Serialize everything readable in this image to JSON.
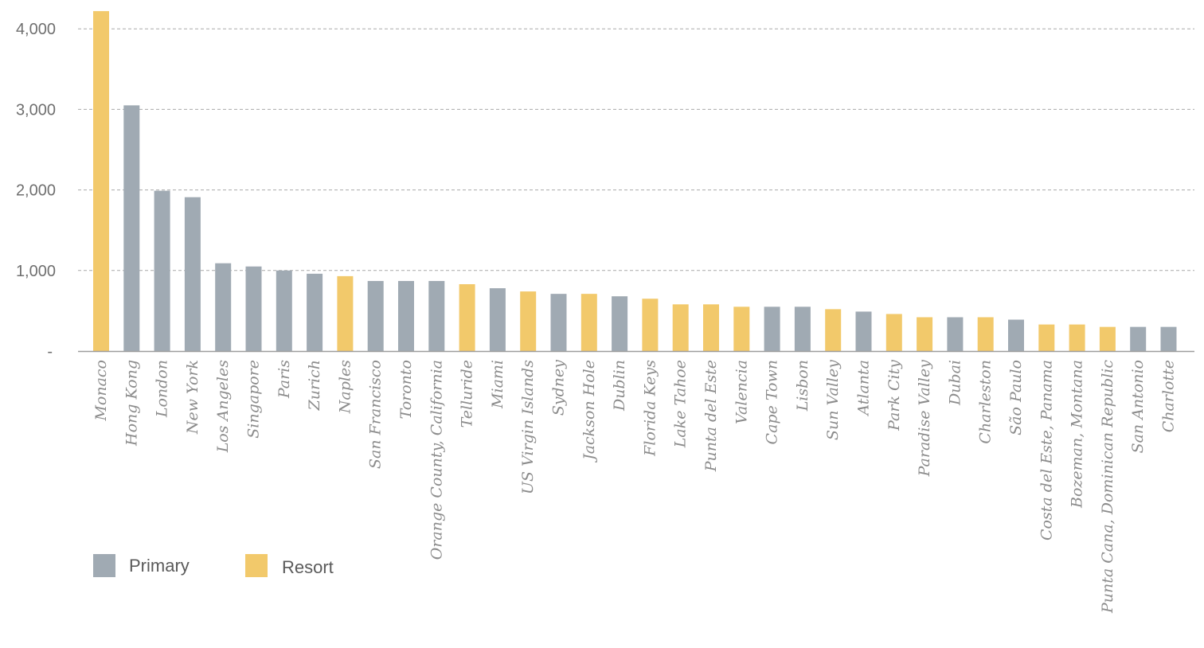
{
  "colors": {
    "Primary": "#a0aab3",
    "Resort": "#f2c96b"
  },
  "chart_data": {
    "type": "bar",
    "title": "",
    "xlabel": "",
    "ylabel": "",
    "ylim": [
      0,
      4200
    ],
    "yticks": [
      {
        "value": 0,
        "label": "-"
      },
      {
        "value": 1000,
        "label": "1,000"
      },
      {
        "value": 2000,
        "label": "2,000"
      },
      {
        "value": 3000,
        "label": "3,000"
      },
      {
        "value": 4000,
        "label": "4,000"
      }
    ],
    "grid": true,
    "legend": {
      "position": "bottom-left",
      "entries": [
        "Primary",
        "Resort"
      ]
    },
    "categories": [
      "Monaco",
      "Hong Kong",
      "London",
      "New York",
      "Los Angeles",
      "Singapore",
      "Paris",
      "Zurich",
      "Naples",
      "San Francisco",
      "Toronto",
      "Orange County, California",
      "Telluride",
      "Miami",
      "US Virgin Islands",
      "Sydney",
      "Jackson Hole",
      "Dublin",
      "Florida Keys",
      "Lake Tahoe",
      "Punta del Este",
      "Valencia",
      "Cape Town",
      "Lisbon",
      "Sun Valley",
      "Atlanta",
      "Park City",
      "Paradise Valley",
      "Dubai",
      "Charleston",
      "São Paulo",
      "Costa del Este, Panama",
      "Bozeman, Montana",
      "Punta Cana, Dominican Republic",
      "San Antonio",
      "Charlotte"
    ],
    "values": [
      4220,
      3050,
      1990,
      1910,
      1090,
      1050,
      1000,
      960,
      930,
      870,
      870,
      870,
      830,
      780,
      740,
      710,
      710,
      680,
      650,
      580,
      580,
      550,
      550,
      550,
      520,
      490,
      460,
      420,
      420,
      420,
      390,
      330,
      330,
      300,
      300,
      300
    ],
    "groups": [
      "Resort",
      "Primary",
      "Primary",
      "Primary",
      "Primary",
      "Primary",
      "Primary",
      "Primary",
      "Resort",
      "Primary",
      "Primary",
      "Primary",
      "Resort",
      "Primary",
      "Resort",
      "Primary",
      "Resort",
      "Primary",
      "Resort",
      "Resort",
      "Resort",
      "Resort",
      "Primary",
      "Primary",
      "Resort",
      "Primary",
      "Resort",
      "Resort",
      "Primary",
      "Resort",
      "Primary",
      "Resort",
      "Resort",
      "Resort",
      "Primary",
      "Primary"
    ]
  }
}
